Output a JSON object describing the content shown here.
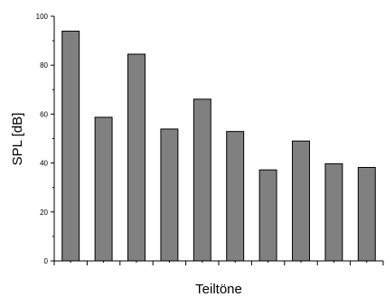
{
  "chart_data": {
    "type": "bar",
    "title": "",
    "xlabel": "Teiltöne",
    "ylabel": "SPL [dB]",
    "ylim": [
      0,
      100
    ],
    "yticks": [
      "0",
      "20",
      "40",
      "60",
      "80",
      "100"
    ],
    "categories": [
      "",
      "",
      "",
      "",
      "",
      "",
      "",
      "",
      "",
      ""
    ],
    "values": [
      93.9,
      58.7,
      84.5,
      53.9,
      66.1,
      52.9,
      37.2,
      49.0,
      39.7,
      38.2
    ],
    "bar_color": "#808080",
    "bar_stroke": "#000000",
    "grid": false,
    "legend": "none"
  }
}
